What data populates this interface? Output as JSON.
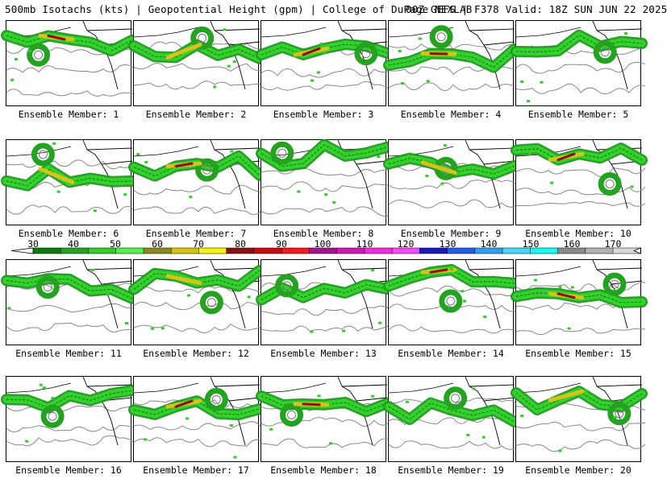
{
  "header": {
    "left": "500mb Isotachs (kts) | Geopotential Height (gpm) | College of DuPage NEXLAB",
    "right": "00Z GEFS | F378 Valid: 18Z SUN JUN 22 2025"
  },
  "colorbar": {
    "ticks": [
      "30",
      "40",
      "50",
      "60",
      "70",
      "80",
      "90",
      "100",
      "110",
      "120",
      "130",
      "140",
      "150",
      "160",
      "170"
    ],
    "colors": [
      "#0e7a0e",
      "#23a31f",
      "#2fce28",
      "#52f04a",
      "#8a8a1e",
      "#d6c21a",
      "#f5f016",
      "#8b0f0f",
      "#c20f0f",
      "#f01a1a",
      "#a8128f",
      "#c81ab8",
      "#e52fe0",
      "#f04cf5",
      "#1a1ab5",
      "#1f5fe0",
      "#2fa0f0",
      "#4fd2f5",
      "#1ef5f5",
      "#8a8a8a",
      "#b0b0b0",
      "#d8d8d8"
    ]
  },
  "members": [
    {
      "label": "Ensemble Member: 1"
    },
    {
      "label": "Ensemble Member: 2"
    },
    {
      "label": "Ensemble Member: 3"
    },
    {
      "label": "Ensemble Member: 4"
    },
    {
      "label": "Ensemble Member: 5"
    },
    {
      "label": "Ensemble Member: 6"
    },
    {
      "label": "Ensemble Member: 7"
    },
    {
      "label": "Ensemble Member: 8"
    },
    {
      "label": "Ensemble Member: 9"
    },
    {
      "label": "Ensemble Member: 10"
    },
    {
      "label": "Ensemble Member: 11"
    },
    {
      "label": "Ensemble Member: 12"
    },
    {
      "label": "Ensemble Member: 13"
    },
    {
      "label": "Ensemble Member: 14"
    },
    {
      "label": "Ensemble Member: 15"
    },
    {
      "label": "Ensemble Member: 16"
    },
    {
      "label": "Ensemble Member: 17"
    },
    {
      "label": "Ensemble Member: 18"
    },
    {
      "label": "Ensemble Member: 19"
    },
    {
      "label": "Ensemble Member: 20"
    }
  ]
}
